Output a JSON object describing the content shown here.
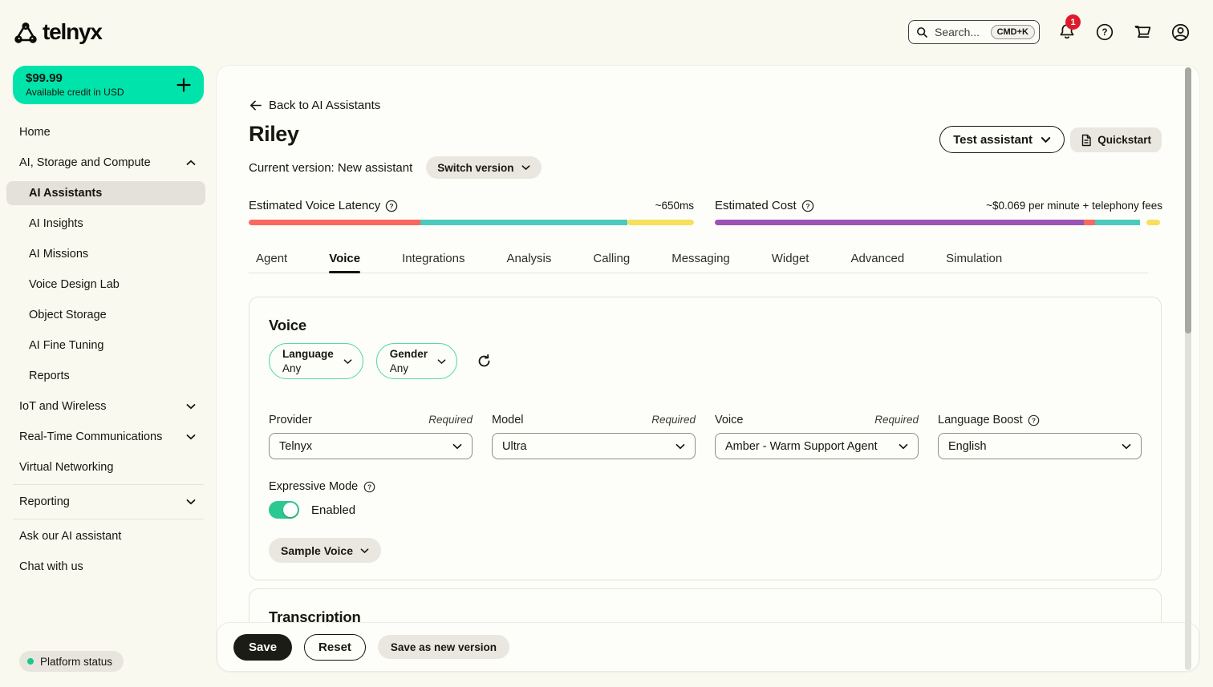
{
  "header": {
    "logo": "telnyx",
    "search": {
      "placeholder": "Search...",
      "shortcut": "CMD+K"
    },
    "notifications": {
      "count": "1"
    }
  },
  "sidebar": {
    "credit": {
      "amount": "$99.99",
      "label": "Available credit in USD"
    },
    "nav": [
      "Home",
      "AI, Storage and Compute",
      "AI Assistants",
      "AI Insights",
      "AI Missions",
      "Voice Design Lab",
      "Object Storage",
      "AI Fine Tuning",
      "Reports",
      "IoT and Wireless",
      "Real-Time Communications",
      "Virtual Networking",
      "Reporting",
      "Ask our AI assistant",
      "Chat with us"
    ],
    "platform_status": "Platform status"
  },
  "main": {
    "back_link": "Back to AI Assistants",
    "title": "Riley",
    "current_version": "Current version: New assistant",
    "switch_version_label": "Switch version",
    "test_assistant_label": "Test assistant",
    "quickstart_label": "Quickstart",
    "metrics": {
      "latency": {
        "label": "Estimated Voice Latency",
        "value": "~650ms",
        "segments": [
          {
            "color": "#F9695F",
            "pct": 38.5
          },
          {
            "color": "#4CC9BE",
            "pct": 46.5
          },
          {
            "color": "#F6E05E",
            "pct": 15
          }
        ]
      },
      "cost": {
        "label": "Estimated Cost",
        "value": "~$0.069 per minute + telephony fees",
        "segments": [
          {
            "color": "#9A52B5",
            "pct": 82.5
          },
          {
            "color": "#F9695F",
            "pct": 2.5
          },
          {
            "color": "#4CC9BE",
            "pct": 10
          },
          {
            "color": "transparent",
            "pct": 1.5
          },
          {
            "color": "#F6E05E",
            "pct": 3
          }
        ]
      }
    },
    "tabs": [
      "Agent",
      "Voice",
      "Integrations",
      "Analysis",
      "Calling",
      "Messaging",
      "Widget",
      "Advanced",
      "Simulation"
    ],
    "active_tab": "Voice",
    "voice_card": {
      "title": "Voice",
      "filters": [
        {
          "label": "Language",
          "value": "Any"
        },
        {
          "label": "Gender",
          "value": "Any"
        }
      ],
      "fields": [
        {
          "label": "Provider",
          "required": "Required",
          "value": "Telnyx"
        },
        {
          "label": "Model",
          "required": "Required",
          "value": "Ultra"
        },
        {
          "label": "Voice",
          "required": "Required",
          "value": "Amber - Warm Support Agent"
        },
        {
          "label": "Language Boost",
          "value": "English"
        }
      ],
      "expressive_mode": {
        "label": "Expressive Mode",
        "status": "Enabled"
      },
      "sample_voice_label": "Sample Voice"
    },
    "transcription": {
      "title": "Transcription"
    },
    "actions": {
      "save": "Save",
      "reset": "Reset",
      "save_as_new": "Save as new version"
    }
  },
  "colors": {
    "accent_green": "#00E3AA",
    "toggle_green": "#2BC892",
    "badge_red": "#DE1B2B",
    "bar_red": "#F9695F",
    "bar_teal": "#4CC9BE",
    "bar_yellow": "#F6E05E",
    "bar_purple": "#9A52B5",
    "page_background": "#FAF9EF"
  }
}
